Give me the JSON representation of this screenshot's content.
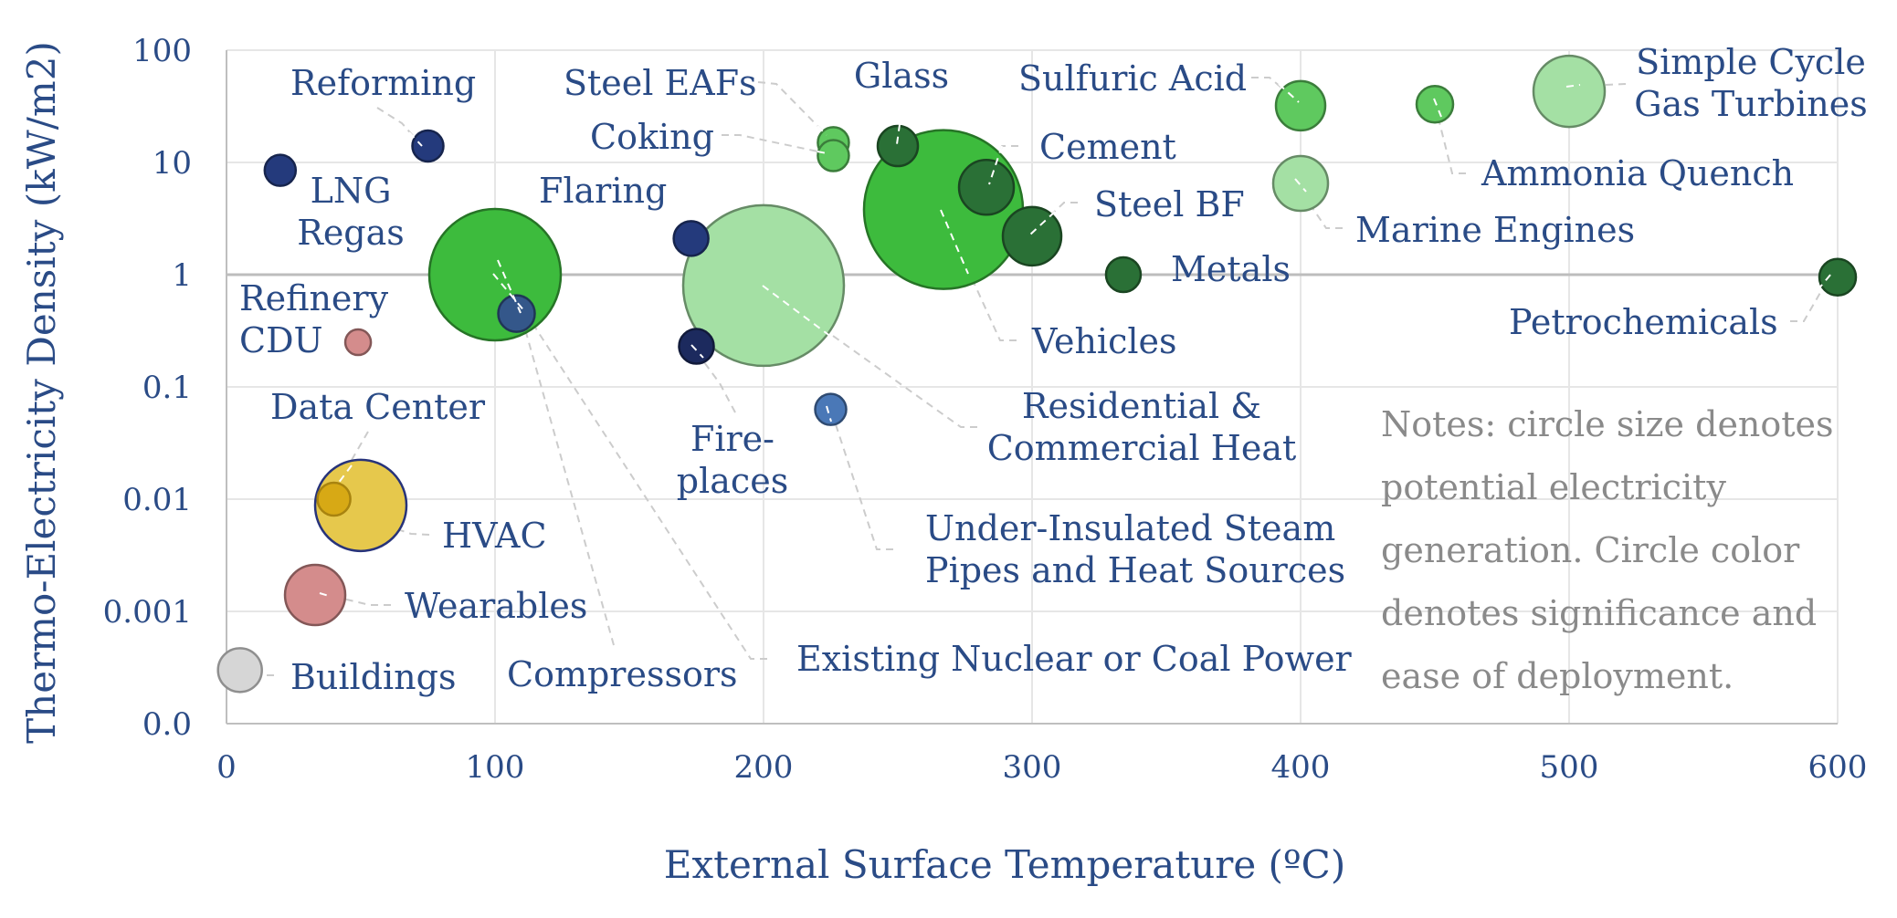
{
  "colors": {
    "axis_text": "#2a4b86",
    "note_text": "#8a8a8a",
    "grid": "#e6e6e6",
    "ref_line": "#bdbdbd",
    "dark_navy": "#243a7c",
    "darker_navy": "#1c2a5e",
    "steel_blue": "#34578a",
    "light_blue": "#4a78b7",
    "dark_green": "#2a7036",
    "green": "#3dbb3d",
    "light_green": "#5fc95f",
    "pale_green": "#a4e0a4",
    "pink": "#d48c8c",
    "yellow": "#e6c84c",
    "gold": "#d7a915",
    "grey": "#d6d6d6"
  },
  "chart_data": {
    "type": "scatter",
    "title": "",
    "xlabel": "External Surface Temperature (ºC)",
    "ylabel": "Thermo-Electricity Density (kW/m2)",
    "xlim": [
      0,
      600
    ],
    "x_ticks": [
      0,
      100,
      200,
      300,
      400,
      500,
      600
    ],
    "y_scale": "log",
    "y_ticks": [
      0.0001,
      0.001,
      0.01,
      0.1,
      1,
      10,
      100
    ],
    "y_tick_labels": [
      "0.0",
      "0.001",
      "0.01",
      "0.1",
      "1",
      "10",
      "100"
    ],
    "grid": true,
    "legend": "none",
    "points": [
      {
        "label": [
          "Reforming"
        ],
        "x": 75,
        "y": 14,
        "size": 0.17,
        "color": "dark_navy"
      },
      {
        "label": [
          "LNG",
          "Regas"
        ],
        "x": 20,
        "y": 8.5,
        "size": 0.17,
        "color": "dark_navy"
      },
      {
        "label": [
          "Flaring"
        ],
        "x": 173,
        "y": 2.1,
        "size": 0.19,
        "color": "dark_navy"
      },
      {
        "label": [
          "Fire-",
          "places"
        ],
        "x": 175,
        "y": 0.23,
        "size": 0.19,
        "color": "darker_navy"
      },
      {
        "label": [
          "Refinery",
          "CDU"
        ],
        "x": 49,
        "y": 0.25,
        "size": 0.14,
        "color": "pink"
      },
      {
        "label": [
          "Compressors"
        ],
        "x": 108,
        "y": 0.45,
        "size": 0.2,
        "color": "steel_blue"
      },
      {
        "label": [
          "Existing Nuclear or Coal Power"
        ],
        "x": 100,
        "y": 1.0,
        "size": 0.72,
        "color": "green"
      },
      {
        "label": [
          "Residential &",
          "Commercial Heat"
        ],
        "x": 200,
        "y": 0.8,
        "size": 0.88,
        "color": "pale_green"
      },
      {
        "label": [
          "Under-Insulated Steam",
          "Pipes and Heat Sources"
        ],
        "x": 225,
        "y": 0.063,
        "size": 0.17,
        "color": "light_blue"
      },
      {
        "label": [
          "Steel EAFs"
        ],
        "x": 226,
        "y": 15,
        "size": 0.17,
        "color": "light_green"
      },
      {
        "label": [
          "Coking"
        ],
        "x": 226,
        "y": 11.5,
        "size": 0.17,
        "color": "light_green"
      },
      {
        "label": [
          "Glass"
        ],
        "x": 250,
        "y": 14,
        "size": 0.22,
        "color": "dark_green"
      },
      {
        "label": [
          "Vehicles"
        ],
        "x": 267,
        "y": 3.8,
        "size": 0.87,
        "color": "green"
      },
      {
        "label": [
          "Cement"
        ],
        "x": 283,
        "y": 6,
        "size": 0.3,
        "color": "dark_green"
      },
      {
        "label": [
          "Steel BF"
        ],
        "x": 300,
        "y": 2.2,
        "size": 0.32,
        "color": "dark_green"
      },
      {
        "label": [
          "Metals"
        ],
        "x": 334,
        "y": 1.0,
        "size": 0.19,
        "color": "dark_green"
      },
      {
        "label": [
          "Sulfuric Acid"
        ],
        "x": 400,
        "y": 32,
        "size": 0.27,
        "color": "light_green"
      },
      {
        "label": [
          "Marine Engines"
        ],
        "x": 400,
        "y": 6.5,
        "size": 0.3,
        "color": "pale_green"
      },
      {
        "label": [
          "Ammonia Quench"
        ],
        "x": 450,
        "y": 33,
        "size": 0.2,
        "color": "light_green"
      },
      {
        "label": [
          "Simple Cycle",
          "Gas Turbines"
        ],
        "x": 500,
        "y": 43,
        "size": 0.39,
        "color": "pale_green"
      },
      {
        "label": [
          "Petrochemicals"
        ],
        "x": 600,
        "y": 0.95,
        "size": 0.2,
        "color": "dark_green"
      },
      {
        "label": [
          "Data Center"
        ],
        "x": 40,
        "y": 0.01,
        "size": 0.18,
        "color": "gold"
      },
      {
        "label": [
          "HVAC"
        ],
        "x": 50,
        "y": 0.0088,
        "size": 0.5,
        "color": "yellow"
      },
      {
        "label": [
          "Wearables"
        ],
        "x": 33,
        "y": 0.0014,
        "size": 0.33,
        "color": "pink"
      },
      {
        "label": [
          "Buildings"
        ],
        "x": 5,
        "y": 0.0003,
        "size": 0.24,
        "color": "grey"
      }
    ],
    "notes": [
      "Notes: circle size denotes",
      "potential electricity",
      "generation. Circle color",
      "denotes significance and",
      "ease of deployment."
    ]
  }
}
